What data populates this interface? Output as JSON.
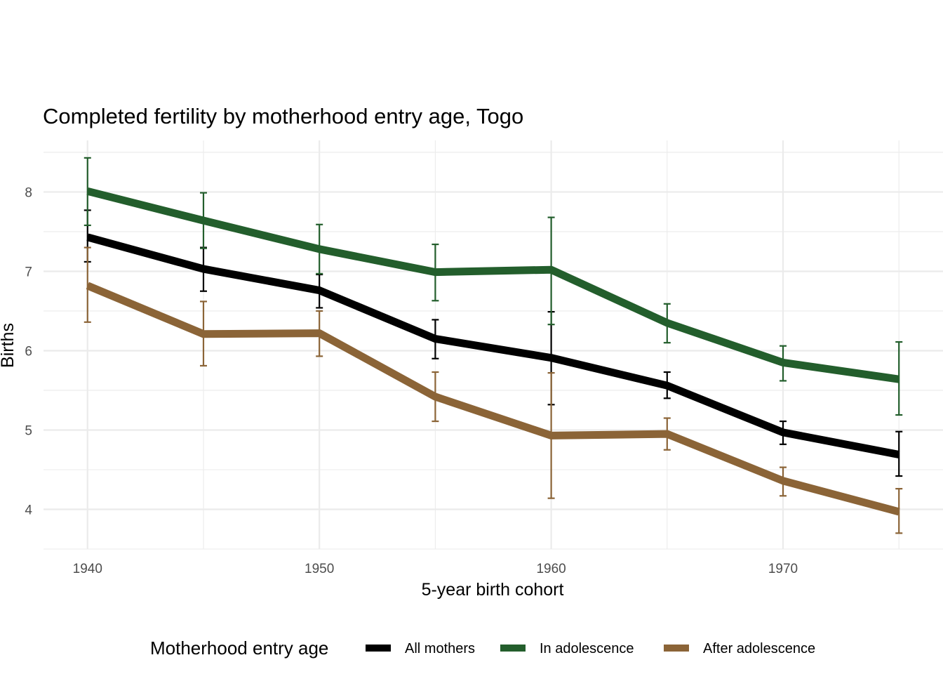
{
  "chart_data": {
    "type": "line",
    "title": "Completed fertility by motherhood entry age,  Togo",
    "xlabel": "5-year birth cohort",
    "ylabel": "Births",
    "x": [
      1940,
      1945,
      1950,
      1955,
      1960,
      1965,
      1970,
      1975
    ],
    "xlim": [
      1938.1,
      1976.9
    ],
    "ylim": [
      3.5,
      8.65
    ],
    "x_ticks": [
      1940,
      1950,
      1960,
      1970
    ],
    "x_tick_labels": [
      "1940",
      "1950",
      "1960",
      "1970"
    ],
    "x_minor_ticks": [
      1945,
      1955,
      1965,
      1975
    ],
    "y_ticks": [
      4,
      5,
      6,
      7,
      8
    ],
    "y_tick_labels": [
      "4",
      "5",
      "6",
      "7",
      "8"
    ],
    "y_minor_ticks": [
      3.5,
      4.5,
      5.5,
      6.5,
      7.5,
      8.5
    ],
    "grid": true,
    "legend": {
      "title": "Motherhood entry age",
      "placement": "bottom"
    },
    "series": [
      {
        "name": "All mothers",
        "color": "#000000",
        "values": [
          7.43,
          7.03,
          6.76,
          6.15,
          5.91,
          5.56,
          4.97,
          4.69
        ],
        "lower": [
          7.12,
          6.75,
          6.54,
          5.9,
          5.32,
          5.4,
          4.82,
          4.42
        ],
        "upper": [
          7.77,
          7.3,
          6.96,
          6.39,
          6.49,
          5.73,
          5.11,
          4.98
        ]
      },
      {
        "name": "In adolescence",
        "color": "#235e2c",
        "values": [
          8.01,
          7.64,
          7.28,
          6.99,
          7.02,
          6.35,
          5.85,
          5.64
        ],
        "lower": [
          7.58,
          7.29,
          6.97,
          6.63,
          6.33,
          6.1,
          5.62,
          5.19
        ],
        "upper": [
          8.43,
          7.99,
          7.59,
          7.34,
          7.68,
          6.59,
          6.06,
          6.11
        ]
      },
      {
        "name": "After adolescence",
        "color": "#8b6437",
        "values": [
          6.82,
          6.21,
          6.22,
          5.42,
          4.93,
          4.95,
          4.36,
          3.97
        ],
        "lower": [
          6.36,
          5.81,
          5.93,
          5.11,
          4.14,
          4.75,
          4.17,
          3.7
        ],
        "upper": [
          7.3,
          6.62,
          6.5,
          5.73,
          5.72,
          5.15,
          4.53,
          4.26
        ]
      }
    ]
  }
}
